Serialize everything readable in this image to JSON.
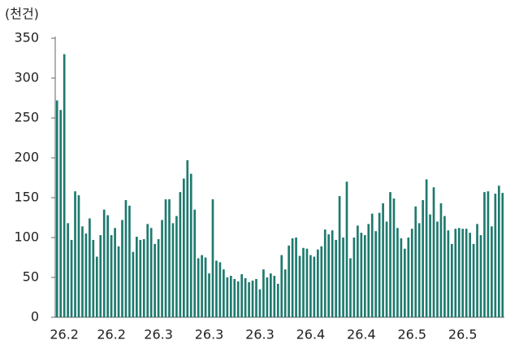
{
  "chart_data": {
    "type": "bar",
    "y_label": "(천건)",
    "categories": [
      null,
      null,
      "26.2",
      null,
      null,
      null,
      null,
      null,
      null,
      null,
      null,
      null,
      null,
      null,
      null,
      "26.2",
      null,
      null,
      null,
      null,
      null,
      null,
      null,
      null,
      null,
      null,
      null,
      null,
      "26.3",
      null,
      null,
      null,
      null,
      null,
      null,
      null,
      null,
      null,
      null,
      null,
      null,
      null,
      "26.3",
      null,
      null,
      null,
      null,
      null,
      null,
      null,
      null,
      null,
      null,
      null,
      null,
      null,
      "26.3",
      null,
      null,
      null,
      null,
      null,
      null,
      null,
      null,
      null,
      null,
      null,
      null,
      null,
      "26.4",
      null,
      null,
      null,
      null,
      null,
      null,
      null,
      null,
      null,
      null,
      null,
      null,
      null,
      "26.4",
      null,
      null,
      null,
      null,
      null,
      null,
      null,
      null,
      null,
      null,
      null,
      null,
      null,
      "26.5",
      null,
      null,
      null,
      null,
      null,
      null,
      null,
      null,
      null,
      null,
      null,
      null,
      null,
      "26.5",
      null,
      null,
      null,
      null,
      null,
      null,
      null,
      null,
      null,
      null,
      null
    ],
    "values": [
      272,
      260,
      330,
      118,
      97,
      158,
      153,
      114,
      105,
      124,
      97,
      76,
      103,
      135,
      128,
      103,
      112,
      89,
      122,
      147,
      140,
      82,
      101,
      97,
      98,
      117,
      112,
      92,
      98,
      122,
      148,
      148,
      118,
      127,
      157,
      174,
      197,
      180,
      135,
      74,
      78,
      75,
      55,
      148,
      71,
      69,
      60,
      50,
      52,
      48,
      45,
      54,
      49,
      44,
      46,
      48,
      35,
      60,
      50,
      55,
      52,
      42,
      78,
      60,
      90,
      99,
      100,
      77,
      87,
      86,
      78,
      76,
      85,
      89,
      110,
      104,
      109,
      97,
      152,
      100,
      170,
      74,
      100,
      115,
      106,
      103,
      117,
      130,
      108,
      131,
      143,
      120,
      157,
      149,
      112,
      99,
      86,
      100,
      111,
      139,
      118,
      147,
      173,
      129,
      163,
      120,
      143,
      127,
      109,
      92,
      111,
      112,
      111,
      111,
      106,
      92,
      117,
      103,
      157,
      158,
      114,
      155,
      165,
      156
    ],
    "color": "#1e7a6e",
    "ylim": [
      0,
      350
    ],
    "yticks": [
      0,
      50,
      100,
      150,
      200,
      250,
      300,
      350
    ]
  }
}
